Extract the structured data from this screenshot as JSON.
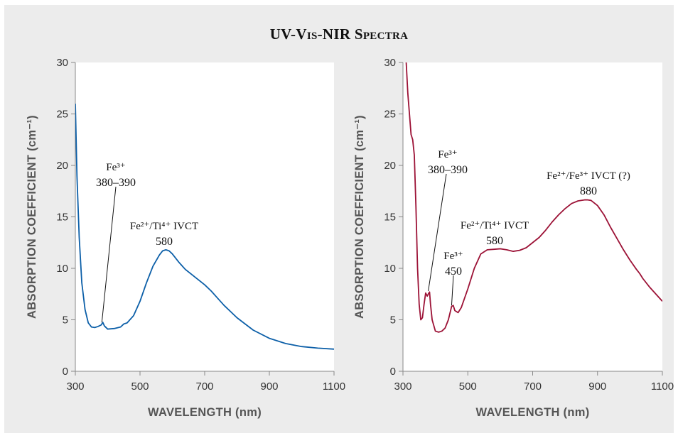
{
  "title": "UV-Vis-NIR Spectra",
  "colors": {
    "left_series": "#0c5fa8",
    "right_series": "#9c1236",
    "background": "#ececec",
    "plot_bg": "#ffffff"
  },
  "chart_data": [
    {
      "type": "line",
      "xlabel": "WAVELENGTH (nm)",
      "ylabel": "ABSORPTION COEFFICIENT (cm⁻¹)",
      "xlim": [
        300,
        1100
      ],
      "ylim": [
        0,
        30
      ],
      "xticks": [
        300,
        500,
        700,
        900,
        1100
      ],
      "yticks": [
        0,
        5,
        10,
        15,
        20,
        25,
        30
      ],
      "grid": false,
      "series": [
        {
          "color": "#0c5fa8",
          "x": [
            300,
            305,
            312,
            320,
            330,
            340,
            350,
            360,
            370,
            380,
            385,
            390,
            400,
            420,
            440,
            450,
            460,
            480,
            500,
            520,
            540,
            560,
            570,
            580,
            590,
            600,
            620,
            640,
            660,
            680,
            700,
            720,
            740,
            760,
            780,
            800,
            850,
            900,
            950,
            1000,
            1050,
            1100
          ],
          "y": [
            26.0,
            19.0,
            13.0,
            8.6,
            6.0,
            4.7,
            4.3,
            4.25,
            4.35,
            4.5,
            4.75,
            4.4,
            4.1,
            4.15,
            4.3,
            4.6,
            4.7,
            5.4,
            6.8,
            8.6,
            10.2,
            11.3,
            11.7,
            11.8,
            11.7,
            11.4,
            10.6,
            9.9,
            9.4,
            8.9,
            8.4,
            7.8,
            7.1,
            6.4,
            5.8,
            5.2,
            4.0,
            3.2,
            2.7,
            2.4,
            2.25,
            2.15
          ]
        }
      ],
      "annotations": [
        {
          "lines": [
            "Fe³⁺",
            "380–390"
          ],
          "points_to": {
            "x": 382,
            "y": 4.75
          }
        },
        {
          "lines": [
            "Fe²⁺/Ti⁴⁺ IVCT",
            "580"
          ],
          "points_to": null
        }
      ]
    },
    {
      "type": "line",
      "xlabel": "WAVELENGTH (nm)",
      "ylabel": "ABSORPTION COEFFICIENT (cm⁻¹)",
      "xlim": [
        300,
        1100
      ],
      "ylim": [
        0,
        30
      ],
      "xticks": [
        300,
        500,
        700,
        900,
        1100
      ],
      "yticks": [
        0,
        5,
        10,
        15,
        20,
        25,
        30
      ],
      "grid": false,
      "series": [
        {
          "color": "#9c1236",
          "x": [
            310,
            315,
            320,
            325,
            330,
            335,
            340,
            345,
            350,
            355,
            360,
            365,
            370,
            375,
            378,
            382,
            385,
            390,
            400,
            410,
            420,
            430,
            440,
            450,
            455,
            460,
            470,
            480,
            500,
            520,
            540,
            560,
            580,
            600,
            620,
            640,
            660,
            680,
            700,
            720,
            740,
            760,
            780,
            800,
            820,
            840,
            860,
            870,
            880,
            900,
            920,
            940,
            960,
            980,
            1000,
            1020,
            1030,
            1040,
            1060,
            1080,
            1100
          ],
          "y": [
            30.0,
            27.0,
            25.0,
            23.0,
            22.5,
            21.0,
            16.0,
            10.0,
            6.5,
            5.0,
            5.2,
            6.5,
            7.6,
            7.3,
            7.5,
            7.7,
            6.5,
            5.0,
            3.9,
            3.8,
            3.9,
            4.2,
            5.0,
            6.3,
            6.4,
            5.9,
            5.7,
            6.2,
            8.0,
            10.0,
            11.4,
            11.8,
            11.85,
            11.9,
            11.8,
            11.65,
            11.75,
            12.0,
            12.5,
            13.0,
            13.7,
            14.5,
            15.2,
            15.8,
            16.3,
            16.55,
            16.65,
            16.65,
            16.6,
            16.1,
            15.2,
            14.0,
            12.9,
            11.8,
            10.8,
            9.9,
            9.5,
            9.0,
            8.2,
            7.5,
            6.8
          ]
        }
      ],
      "annotations": [
        {
          "lines": [
            "Fe³⁺",
            "380–390"
          ],
          "points_to": {
            "x": 378,
            "y": 7.8
          }
        },
        {
          "lines": [
            "Fe³⁺",
            "450"
          ],
          "points_to": {
            "x": 450,
            "y": 6.4
          }
        },
        {
          "lines": [
            "Fe²⁺/Ti⁴⁺ IVCT",
            "580"
          ],
          "points_to": null
        },
        {
          "lines": [
            "Fe²⁺/Fe³⁺ IVCT (?)",
            "880"
          ],
          "points_to": null
        }
      ]
    }
  ]
}
